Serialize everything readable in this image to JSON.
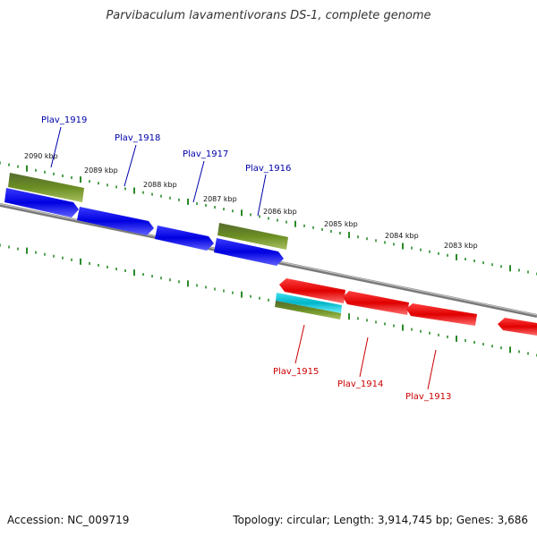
{
  "title": "Parvibaculum lavamentivorans DS-1, complete genome",
  "footer": {
    "accession": "Accession: NC_009719",
    "summary": "Topology: circular; Length: 3,914,745 bp; Genes: 3,686"
  },
  "scale_labels": [
    "2090 kbp",
    "2089 kbp",
    "2088 kbp",
    "2087 kbp",
    "2086 kbp",
    "2085 kbp",
    "2084 kbp",
    "2083 kbp"
  ],
  "gene_labels_forward": [
    "Plav_1919",
    "Plav_1918",
    "Plav_1917",
    "Plav_1916"
  ],
  "gene_labels_reverse": [
    "Plav_1915",
    "Plav_1914",
    "Plav_1913"
  ],
  "colors": {
    "forward_label": "#0000aa",
    "reverse_label": "#cc0000",
    "cds_forward": "#0000ee",
    "cds_reverse": "#ee0000",
    "gene_olive": "#6b8e23",
    "gene_cyan": "#00b5c8",
    "backbone": "#888888",
    "ticks": "#2a8a2a"
  }
}
